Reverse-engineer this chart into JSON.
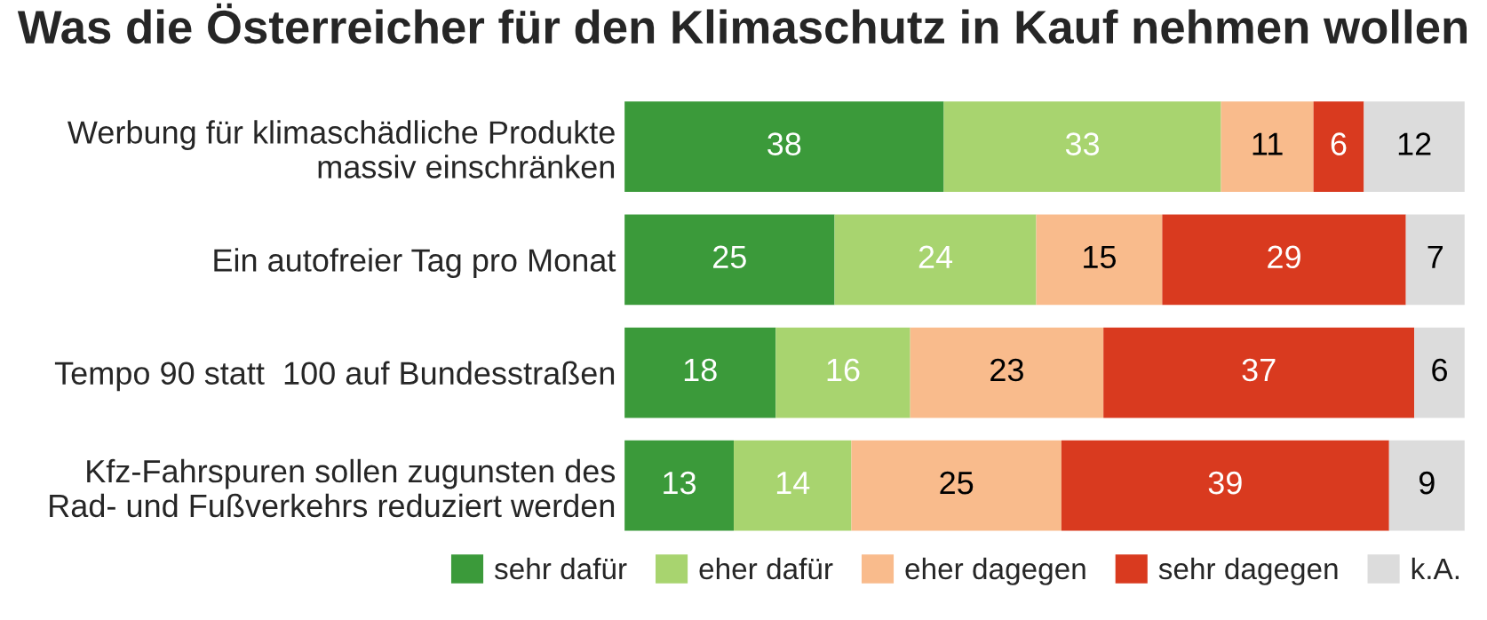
{
  "chart_data": {
    "type": "bar",
    "orientation": "horizontal",
    "stacked": true,
    "data_labels": true,
    "legend": "bottom",
    "grid": false,
    "title": "Was die Österreicher für den Klimaschutz in Kauf nehmen wollen",
    "categories": [
      "Werbung für klimaschädliche Produkte\nmassiv einschränken",
      "Ein autofreier Tag pro Monat",
      "Tempo 90 statt  100 auf Bundesstraßen",
      "Kfz-Fahrspuren sollen zugunsten des\nRad- und Fußverkehrs reduziert werden"
    ],
    "series": [
      {
        "name": "sehr dafür",
        "color": "#3b9a3a",
        "values": [
          38,
          25,
          18,
          13
        ]
      },
      {
        "name": "eher dafür",
        "color": "#a8d46f",
        "values": [
          33,
          24,
          16,
          14
        ]
      },
      {
        "name": "eher dagegen",
        "color": "#f9bb8c",
        "values": [
          11,
          15,
          23,
          25
        ]
      },
      {
        "name": "sehr dagegen",
        "color": "#d93a1f",
        "values": [
          6,
          29,
          37,
          39
        ]
      },
      {
        "name": "k.A.",
        "color": "#dcdcdc",
        "values": [
          12,
          7,
          6,
          9
        ]
      }
    ]
  }
}
